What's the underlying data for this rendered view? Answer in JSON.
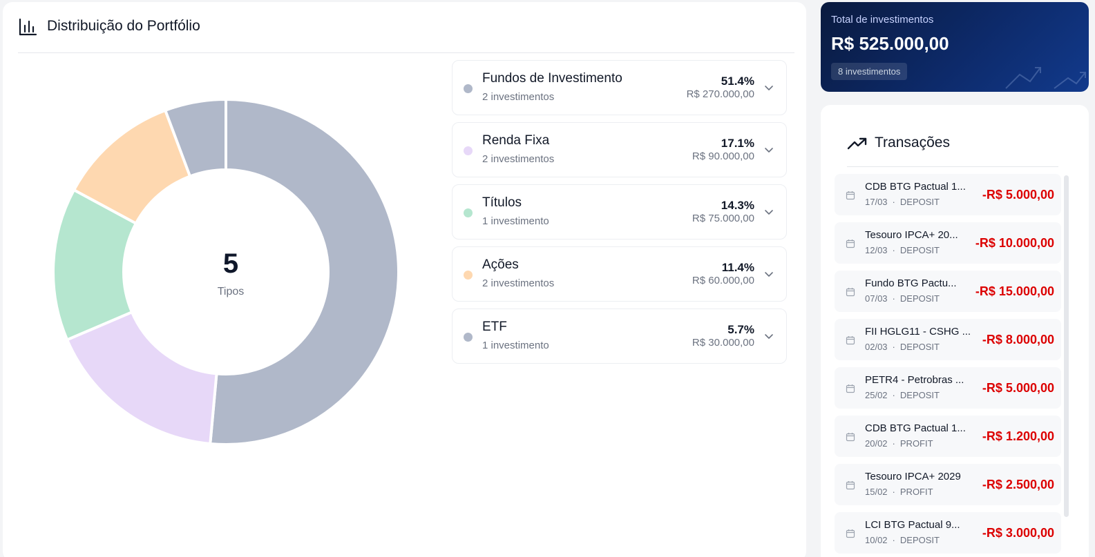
{
  "portfolio": {
    "title": "Distribuição do Portfólio",
    "center_value": "5",
    "center_label": "Tipos"
  },
  "categories": [
    {
      "name": "Fundos de Investimento",
      "count": "2 investimentos",
      "percent": "51.4%",
      "value": "R$ 270.000,00",
      "color": "#b0b8c9"
    },
    {
      "name": "Renda Fixa",
      "count": "2 investimentos",
      "percent": "17.1%",
      "value": "R$ 90.000,00",
      "color": "#e7d8f8"
    },
    {
      "name": "Títulos",
      "count": "1 investimento",
      "percent": "14.3%",
      "value": "R$ 75.000,00",
      "color": "#b5e6cf"
    },
    {
      "name": "Ações",
      "count": "2 investimentos",
      "percent": "11.4%",
      "value": "R$ 60.000,00",
      "color": "#fed8b0"
    },
    {
      "name": "ETF",
      "count": "1 investimento",
      "percent": "5.7%",
      "value": "R$ 30.000,00",
      "color": "#b0b8c9"
    }
  ],
  "chart_data": {
    "type": "pie",
    "categories": [
      "Fundos de Investimento",
      "Renda Fixa",
      "Títulos",
      "Ações",
      "ETF"
    ],
    "values": [
      51.4,
      17.1,
      14.3,
      11.4,
      5.7
    ],
    "colors": [
      "#b0b8c9",
      "#e7d8f8",
      "#b5e6cf",
      "#fed8b0",
      "#b0b8c9"
    ]
  },
  "total": {
    "label": "Total de investimentos",
    "value": "R$ 525.000,00",
    "badge": "8 investimentos"
  },
  "transactions": {
    "title": "Transações",
    "items": [
      {
        "name": "CDB BTG Pactual 1...",
        "date": "17/03",
        "type": "DEPOSIT",
        "amount": "-R$ 5.000,00"
      },
      {
        "name": "Tesouro IPCA+ 20...",
        "date": "12/03",
        "type": "DEPOSIT",
        "amount": "-R$ 10.000,00"
      },
      {
        "name": "Fundo BTG Pactu...",
        "date": "07/03",
        "type": "DEPOSIT",
        "amount": "-R$ 15.000,00"
      },
      {
        "name": "FII HGLG11 - CSHG ...",
        "date": "02/03",
        "type": "DEPOSIT",
        "amount": "-R$ 8.000,00"
      },
      {
        "name": "PETR4 - Petrobras ...",
        "date": "25/02",
        "type": "DEPOSIT",
        "amount": "-R$ 5.000,00"
      },
      {
        "name": "CDB BTG Pactual 1...",
        "date": "20/02",
        "type": "PROFIT",
        "amount": "-R$ 1.200,00"
      },
      {
        "name": "Tesouro IPCA+ 2029",
        "date": "15/02",
        "type": "PROFIT",
        "amount": "-R$ 2.500,00"
      },
      {
        "name": "LCI BTG Pactual 9...",
        "date": "10/02",
        "type": "DEPOSIT",
        "amount": "-R$ 3.000,00"
      }
    ]
  },
  "icons": {
    "portfolio": "bar-chart-icon",
    "transactions": "trending-up-icon",
    "expand": "chevron-down-icon",
    "date": "calendar-icon"
  }
}
